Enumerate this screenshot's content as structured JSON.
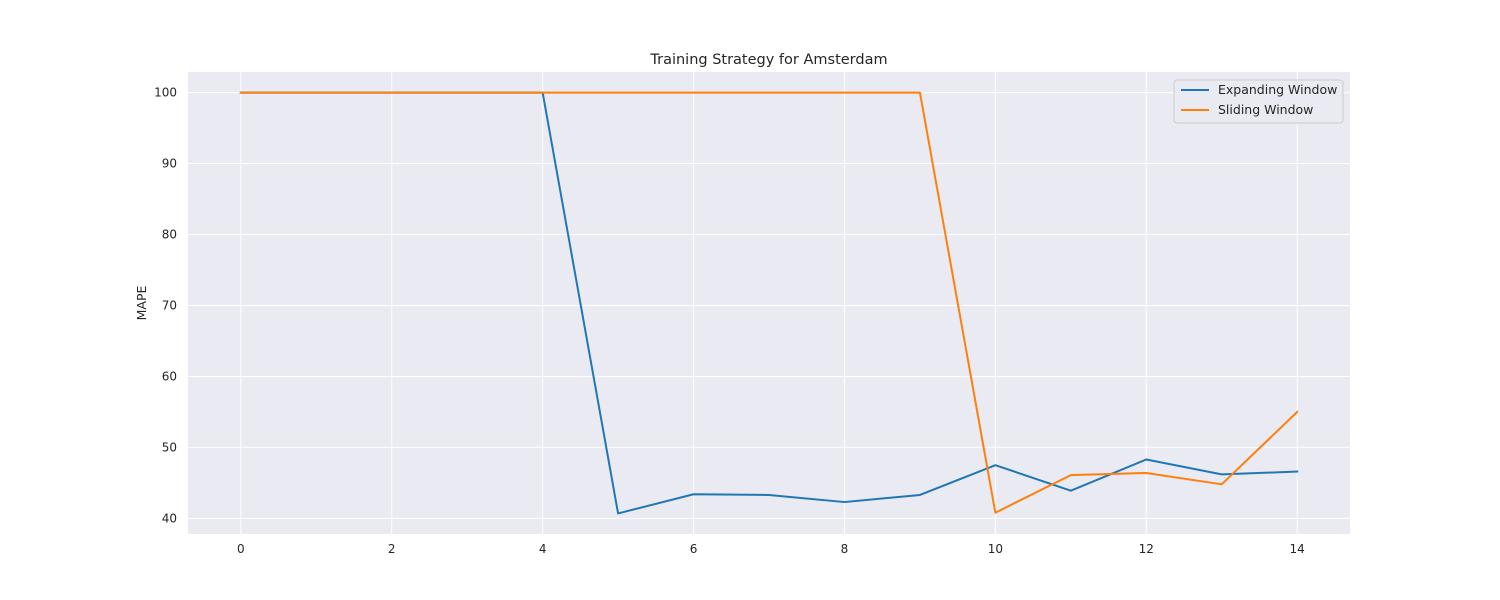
{
  "chart_data": {
    "type": "line",
    "title": "Training Strategy for Amsterdam",
    "xlabel": "",
    "ylabel": "MAPE",
    "x": [
      0,
      1,
      2,
      3,
      4,
      5,
      6,
      7,
      8,
      9,
      10,
      11,
      12,
      13,
      14
    ],
    "xlim": [
      -0.7,
      14.7
    ],
    "ylim": [
      37.8,
      102.9
    ],
    "xticks": [
      0,
      2,
      4,
      6,
      8,
      10,
      12,
      14
    ],
    "yticks": [
      40,
      50,
      60,
      70,
      80,
      90,
      100
    ],
    "grid": true,
    "legend_position": "top-right",
    "series": [
      {
        "name": "Expanding Window",
        "color": "#1f77b4",
        "values": [
          100,
          100,
          100,
          100,
          100,
          40.7,
          43.4,
          43.3,
          42.3,
          43.3,
          47.5,
          43.9,
          48.3,
          46.2,
          46.6
        ]
      },
      {
        "name": "Sliding Window",
        "color": "#ff7f0e",
        "values": [
          100,
          100,
          100,
          100,
          100,
          100,
          100,
          100,
          100,
          100,
          40.8,
          46.1,
          46.4,
          44.8,
          55.0
        ]
      }
    ]
  },
  "colors": {
    "plot_background": "#eaeaf2",
    "grid": "#ffffff",
    "text": "#262626"
  }
}
